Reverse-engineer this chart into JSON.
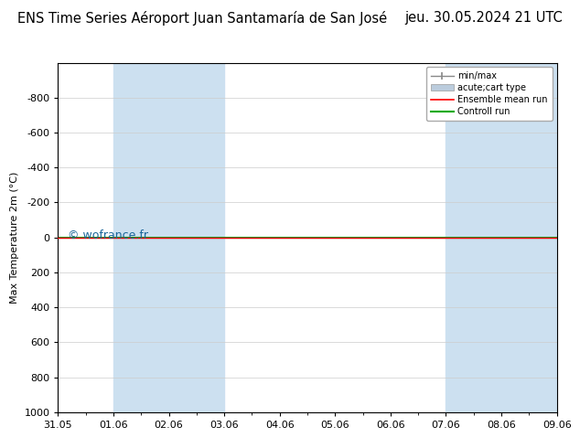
{
  "title": "ENS Time Series Aéroport Juan Santamaría de San José",
  "date_label": "jeu. 30.05.2024 21 UTC",
  "ylabel": "Max Temperature 2m (°C)",
  "watermark": "© wofrance.fr",
  "ylim_bottom": 1000,
  "ylim_top": -1000,
  "yticks": [
    -800,
    -600,
    -400,
    -200,
    0,
    200,
    400,
    600,
    800,
    1000
  ],
  "ytick_labels": [
    "-800",
    "-600",
    "-400",
    "-200",
    "0",
    "200",
    "400",
    "600",
    "800",
    "1000"
  ],
  "x_start": 0,
  "x_end": 9,
  "xtick_labels": [
    "31.05",
    "01.06",
    "02.06",
    "03.06",
    "04.06",
    "05.06",
    "06.06",
    "07.06",
    "08.06",
    "09.06"
  ],
  "xtick_positions": [
    0,
    1,
    2,
    3,
    4,
    5,
    6,
    7,
    8,
    9
  ],
  "shaded_bands": [
    [
      1,
      2
    ],
    [
      2,
      3
    ],
    [
      7,
      8
    ],
    [
      8,
      9
    ]
  ],
  "shaded_color": "#cce0f0",
  "ensemble_mean_color": "#ff0000",
  "control_run_color": "#00aa00",
  "ensemble_mean_y": 0,
  "control_run_y": 0,
  "bg_color": "#ffffff",
  "plot_bg_color": "#ffffff",
  "border_color": "#000000",
  "legend_items": [
    "min/max",
    "acute;cart type",
    "Ensemble mean run",
    "Controll run"
  ],
  "minmax_color": "#888888",
  "acutecart_color": "#bbccdd",
  "title_fontsize": 10.5,
  "date_fontsize": 10.5,
  "axis_label_fontsize": 8,
  "tick_fontsize": 8,
  "watermark_color": "#1a6699",
  "watermark_fontsize": 9
}
